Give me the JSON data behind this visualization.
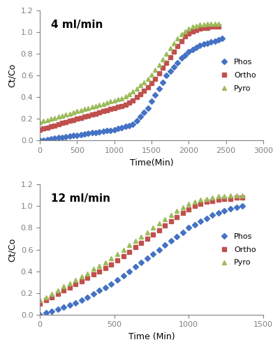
{
  "plot1": {
    "label": "4 ml/min",
    "xlabel": "Time(Min)",
    "ylabel": "Ct/Co",
    "xlim": [
      0,
      3000
    ],
    "ylim": [
      0,
      1.2
    ],
    "xticks": [
      0,
      500,
      1000,
      1500,
      2000,
      2500,
      3000
    ],
    "yticks": [
      0,
      0.2,
      0.4,
      0.6,
      0.8,
      1.0,
      1.2
    ],
    "phos": {
      "time": [
        0,
        50,
        100,
        150,
        200,
        250,
        300,
        350,
        400,
        450,
        500,
        550,
        600,
        650,
        700,
        750,
        800,
        850,
        900,
        950,
        1000,
        1050,
        1100,
        1150,
        1200,
        1250,
        1300,
        1350,
        1400,
        1450,
        1500,
        1550,
        1600,
        1650,
        1700,
        1750,
        1800,
        1850,
        1900,
        1950,
        2000,
        2050,
        2100,
        2150,
        2200,
        2250,
        2300,
        2350,
        2400,
        2450
      ],
      "ct_co": [
        0,
        0.005,
        0.01,
        0.015,
        0.02,
        0.025,
        0.03,
        0.035,
        0.04,
        0.045,
        0.05,
        0.055,
        0.06,
        0.065,
        0.07,
        0.075,
        0.08,
        0.085,
        0.09,
        0.095,
        0.1,
        0.11,
        0.12,
        0.13,
        0.14,
        0.15,
        0.18,
        0.22,
        0.26,
        0.3,
        0.36,
        0.42,
        0.48,
        0.54,
        0.6,
        0.64,
        0.68,
        0.72,
        0.76,
        0.79,
        0.82,
        0.84,
        0.86,
        0.88,
        0.89,
        0.9,
        0.91,
        0.92,
        0.93,
        0.94
      ],
      "color": "#4472C4",
      "marker": "D",
      "markersize": 4,
      "label": "Phos"
    },
    "ortho": {
      "time": [
        0,
        50,
        100,
        150,
        200,
        250,
        300,
        350,
        400,
        450,
        500,
        550,
        600,
        650,
        700,
        750,
        800,
        850,
        900,
        950,
        1000,
        1050,
        1100,
        1150,
        1200,
        1250,
        1300,
        1350,
        1400,
        1450,
        1500,
        1550,
        1600,
        1650,
        1700,
        1750,
        1800,
        1850,
        1900,
        1950,
        2000,
        2050,
        2100,
        2150,
        2200,
        2250,
        2300,
        2350,
        2400
      ],
      "ct_co": [
        0.1,
        0.11,
        0.12,
        0.13,
        0.14,
        0.15,
        0.16,
        0.17,
        0.18,
        0.19,
        0.2,
        0.21,
        0.22,
        0.23,
        0.24,
        0.25,
        0.26,
        0.27,
        0.28,
        0.29,
        0.3,
        0.31,
        0.32,
        0.33,
        0.35,
        0.37,
        0.4,
        0.43,
        0.46,
        0.49,
        0.53,
        0.57,
        0.62,
        0.67,
        0.72,
        0.77,
        0.82,
        0.87,
        0.92,
        0.96,
        0.99,
        1.01,
        1.02,
        1.03,
        1.04,
        1.04,
        1.05,
        1.05,
        1.05
      ],
      "color": "#C0504D",
      "marker": "s",
      "markersize": 5,
      "label": "Ortho"
    },
    "pyro": {
      "time": [
        0,
        50,
        100,
        150,
        200,
        250,
        300,
        350,
        400,
        450,
        500,
        550,
        600,
        650,
        700,
        750,
        800,
        850,
        900,
        950,
        1000,
        1050,
        1100,
        1150,
        1200,
        1250,
        1300,
        1350,
        1400,
        1450,
        1500,
        1550,
        1600,
        1650,
        1700,
        1750,
        1800,
        1850,
        1900,
        1950,
        2000,
        2050,
        2100,
        2150,
        2200,
        2250,
        2300,
        2350,
        2400
      ],
      "ct_co": [
        0.17,
        0.18,
        0.19,
        0.2,
        0.21,
        0.22,
        0.23,
        0.24,
        0.25,
        0.26,
        0.27,
        0.28,
        0.29,
        0.3,
        0.31,
        0.32,
        0.33,
        0.34,
        0.35,
        0.36,
        0.37,
        0.38,
        0.39,
        0.41,
        0.43,
        0.45,
        0.48,
        0.51,
        0.54,
        0.57,
        0.61,
        0.65,
        0.7,
        0.75,
        0.8,
        0.85,
        0.9,
        0.94,
        0.98,
        1.01,
        1.03,
        1.05,
        1.06,
        1.07,
        1.07,
        1.08,
        1.08,
        1.08,
        1.08
      ],
      "color": "#9BBB59",
      "marker": "^",
      "markersize": 5,
      "label": "Pyro"
    }
  },
  "plot2": {
    "label": "12 ml/min",
    "xlabel": "Time (Min)",
    "ylabel": "Ct/Co",
    "xlim": [
      0,
      1500
    ],
    "ylim": [
      0,
      1.2
    ],
    "xticks": [
      0,
      500,
      1000,
      1500
    ],
    "yticks": [
      0,
      0.2,
      0.4,
      0.6,
      0.8,
      1.0,
      1.2
    ],
    "phos": {
      "time": [
        0,
        40,
        80,
        120,
        160,
        200,
        240,
        280,
        320,
        360,
        400,
        440,
        480,
        520,
        560,
        600,
        640,
        680,
        720,
        760,
        800,
        840,
        880,
        920,
        960,
        1000,
        1040,
        1080,
        1120,
        1160,
        1200,
        1240,
        1280,
        1320,
        1360
      ],
      "ct_co": [
        0,
        0.015,
        0.03,
        0.05,
        0.07,
        0.09,
        0.11,
        0.13,
        0.16,
        0.19,
        0.22,
        0.25,
        0.28,
        0.32,
        0.36,
        0.4,
        0.44,
        0.48,
        0.52,
        0.56,
        0.6,
        0.64,
        0.68,
        0.72,
        0.76,
        0.8,
        0.83,
        0.86,
        0.89,
        0.92,
        0.94,
        0.96,
        0.98,
        0.99,
        1.0
      ],
      "color": "#4472C4",
      "marker": "D",
      "markersize": 4,
      "label": "Phos"
    },
    "ortho": {
      "time": [
        0,
        40,
        80,
        120,
        160,
        200,
        240,
        280,
        320,
        360,
        400,
        440,
        480,
        520,
        560,
        600,
        640,
        680,
        720,
        760,
        800,
        840,
        880,
        920,
        960,
        1000,
        1040,
        1080,
        1120,
        1160,
        1200,
        1240,
        1280,
        1320,
        1360
      ],
      "ct_co": [
        0.1,
        0.13,
        0.16,
        0.19,
        0.22,
        0.25,
        0.28,
        0.31,
        0.34,
        0.37,
        0.4,
        0.43,
        0.46,
        0.5,
        0.54,
        0.58,
        0.62,
        0.66,
        0.7,
        0.74,
        0.78,
        0.82,
        0.86,
        0.9,
        0.94,
        0.97,
        1.0,
        1.02,
        1.04,
        1.05,
        1.06,
        1.07,
        1.07,
        1.08,
        1.08
      ],
      "color": "#C0504D",
      "marker": "s",
      "markersize": 5,
      "label": "Ortho"
    },
    "pyro": {
      "time": [
        0,
        40,
        80,
        120,
        160,
        200,
        240,
        280,
        320,
        360,
        400,
        440,
        480,
        520,
        560,
        600,
        640,
        680,
        720,
        760,
        800,
        840,
        880,
        920,
        960,
        1000,
        1040,
        1080,
        1120,
        1160,
        1200,
        1240,
        1280,
        1320,
        1360
      ],
      "ct_co": [
        0.13,
        0.16,
        0.19,
        0.22,
        0.26,
        0.29,
        0.32,
        0.35,
        0.38,
        0.42,
        0.45,
        0.48,
        0.52,
        0.56,
        0.6,
        0.64,
        0.68,
        0.72,
        0.76,
        0.8,
        0.84,
        0.88,
        0.92,
        0.96,
        0.99,
        1.02,
        1.04,
        1.06,
        1.07,
        1.08,
        1.09,
        1.09,
        1.1,
        1.1,
        1.1
      ],
      "color": "#9BBB59",
      "marker": "^",
      "markersize": 5,
      "label": "Pyro"
    }
  },
  "background_color": "#FFFFFF",
  "legend_fontsize": 8,
  "axis_label_fontsize": 9,
  "tick_fontsize": 8,
  "annotation_fontsize": 11
}
